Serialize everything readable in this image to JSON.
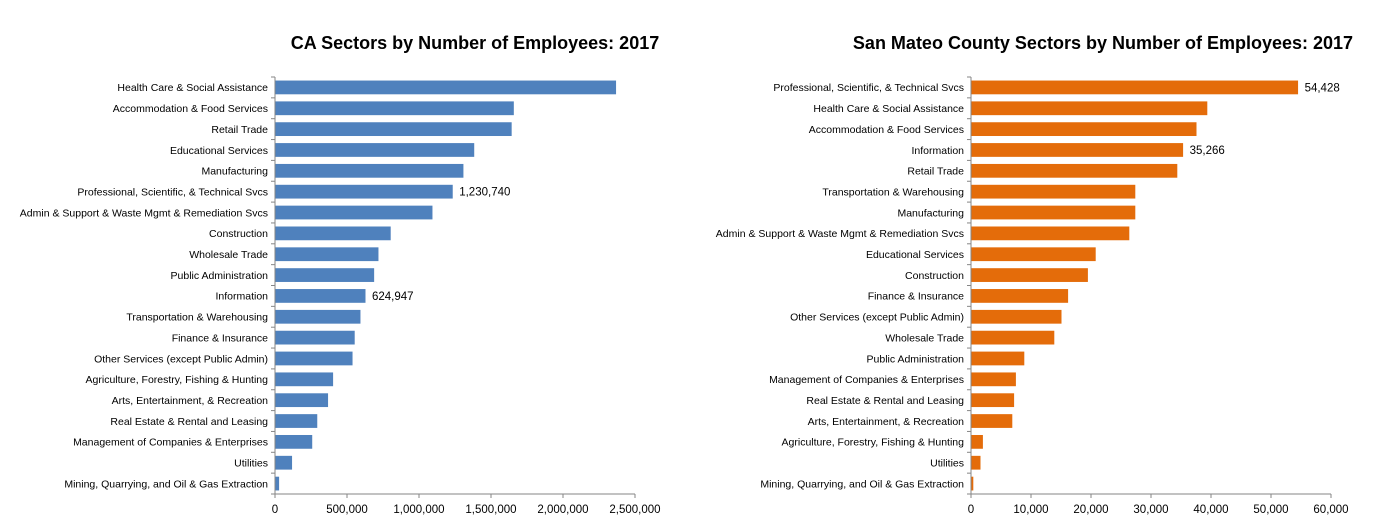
{
  "chart_data": [
    {
      "type": "bar",
      "orientation": "horizontal",
      "title": "CA Sectors by Number of Employees: 2017",
      "color": "#4F81BD",
      "xlim": [
        0,
        2500000
      ],
      "ticks": [
        0,
        500000,
        1000000,
        1500000,
        2000000,
        2500000
      ],
      "tick_labels": [
        "0",
        "500,000",
        "1,000,000",
        "1,500,000",
        "2,000,000",
        "2,500,000"
      ],
      "grid": false,
      "categories": [
        "Health Care & Social Assistance",
        "Accommodation & Food Services",
        "Retail Trade",
        "Educational Services",
        "Manufacturing",
        "Professional, Scientific, & Technical Svcs",
        "Admin & Support & Waste Mgmt & Remediation Svcs",
        "Construction",
        "Wholesale Trade",
        "Public Administration",
        "Information",
        "Transportation & Warehousing",
        "Finance & Insurance",
        "Other Services (except Public Admin)",
        "Agriculture, Forestry, Fishing & Hunting",
        "Arts, Entertainment, & Recreation",
        "Real Estate & Rental and Leasing",
        "Management of Companies & Enterprises",
        "Utilities",
        "Mining, Quarrying, and Oil & Gas Extraction"
      ],
      "values": [
        2365000,
        1655000,
        1640000,
        1380000,
        1305000,
        1230740,
        1090000,
        800000,
        715000,
        685000,
        624947,
        590000,
        550000,
        535000,
        400000,
        365000,
        290000,
        255000,
        115000,
        25000
      ],
      "data_labels": [
        {
          "category": "Professional, Scientific, & Technical Svcs",
          "text": "1,230,740"
        },
        {
          "category": "Information",
          "text": "624,947"
        }
      ]
    },
    {
      "type": "bar",
      "orientation": "horizontal",
      "title": "San Mateo County Sectors by Number of Employees: 2017",
      "color": "#E46C0A",
      "xlim": [
        0,
        60000
      ],
      "ticks": [
        0,
        10000,
        20000,
        30000,
        40000,
        50000,
        60000
      ],
      "tick_labels": [
        "0",
        "10,000",
        "20,000",
        "30,000",
        "40,000",
        "50,000",
        "60,000"
      ],
      "grid": false,
      "categories": [
        "Professional, Scientific, & Technical Svcs",
        "Health Care & Social Assistance",
        "Accommodation & Food Services",
        "Information",
        "Retail Trade",
        "Transportation & Warehousing",
        "Manufacturing",
        "Admin & Support & Waste Mgmt & Remediation Svcs",
        "Educational Services",
        "Construction",
        "Finance & Insurance",
        "Other Services (except Public Admin)",
        "Wholesale Trade",
        "Public Administration",
        "Management of Companies & Enterprises",
        "Real Estate & Rental and Leasing",
        "Arts, Entertainment, & Recreation",
        "Agriculture, Forestry, Fishing & Hunting",
        "Utilities",
        "Mining, Quarrying, and Oil & Gas Extraction"
      ],
      "values": [
        54428,
        39300,
        37500,
        35266,
        34300,
        27300,
        27300,
        26300,
        20700,
        19400,
        16100,
        15000,
        13800,
        8800,
        7400,
        7100,
        6800,
        1900,
        1500,
        300
      ],
      "data_labels": [
        {
          "category": "Professional, Scientific, & Technical Svcs",
          "text": "54,428"
        },
        {
          "category": "Information",
          "text": "35,266"
        }
      ]
    }
  ]
}
